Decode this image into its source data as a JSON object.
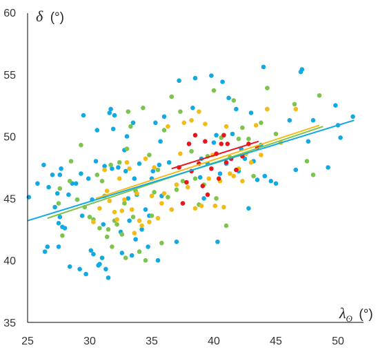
{
  "chart_data": {
    "type": "scatter",
    "title": "",
    "xlabel": {
      "symbol": "λ",
      "subscript": "ʘ",
      "unit": "(°)"
    },
    "ylabel": {
      "symbol": "δ",
      "unit": "(°)"
    },
    "xlim": [
      25,
      52
    ],
    "ylim": [
      35,
      60
    ],
    "xticks": [
      25,
      30,
      35,
      40,
      45,
      50
    ],
    "yticks": [
      35,
      40,
      45,
      50,
      55,
      60
    ],
    "grid": false,
    "legend": "none",
    "series": [
      {
        "color": "#11a9e2",
        "points": [
          [
            25.1,
            45.1
          ],
          [
            25.8,
            46.2
          ],
          [
            26.3,
            47.7
          ],
          [
            26.4,
            40.7
          ],
          [
            26.6,
            41.1
          ],
          [
            26.7,
            45.9
          ],
          [
            27.0,
            46.9
          ],
          [
            27.2,
            44.3
          ],
          [
            27.4,
            45.4
          ],
          [
            27.5,
            41.1
          ],
          [
            27.5,
            43.0
          ],
          [
            27.6,
            43.5
          ],
          [
            27.6,
            46.9
          ],
          [
            27.7,
            47.4
          ],
          [
            27.8,
            42.7
          ],
          [
            28.0,
            42.6
          ],
          [
            28.3,
            45.3
          ],
          [
            28.4,
            39.5
          ],
          [
            28.6,
            46.2
          ],
          [
            28.9,
            46.2
          ],
          [
            29.0,
            44.9
          ],
          [
            29.2,
            39.3
          ],
          [
            29.3,
            47.0
          ],
          [
            29.4,
            43.6
          ],
          [
            29.5,
            51.7
          ],
          [
            29.7,
            38.9
          ],
          [
            29.9,
            46.6
          ],
          [
            30.1,
            40.8
          ],
          [
            30.2,
            44.9
          ],
          [
            30.3,
            40.5
          ],
          [
            30.5,
            48.0
          ],
          [
            30.6,
            50.5
          ],
          [
            30.7,
            39.6
          ],
          [
            30.8,
            39.7
          ],
          [
            31.0,
            40.2
          ],
          [
            31.1,
            42.9
          ],
          [
            31.2,
            47.6
          ],
          [
            31.3,
            39.3
          ],
          [
            31.5,
            38.6
          ],
          [
            31.6,
            51.9
          ],
          [
            31.7,
            52.2
          ],
          [
            31.8,
            47.4
          ],
          [
            31.9,
            50.6
          ],
          [
            32.0,
            51.7
          ],
          [
            32.3,
            47.5
          ],
          [
            32.5,
            42.3
          ],
          [
            32.6,
            40.6
          ],
          [
            32.8,
            48.9
          ],
          [
            32.9,
            47.2
          ],
          [
            33.0,
            50.0
          ],
          [
            33.1,
            45.0
          ],
          [
            33.2,
            43.2
          ],
          [
            33.4,
            40.4
          ],
          [
            33.5,
            51.1
          ],
          [
            33.6,
            46.6
          ],
          [
            33.7,
            41.7
          ],
          [
            33.8,
            45.3
          ],
          [
            34.0,
            47.8
          ],
          [
            34.2,
            42.5
          ],
          [
            34.5,
            44.1
          ],
          [
            34.7,
            41.1
          ],
          [
            34.8,
            43.6
          ],
          [
            35.0,
            46.6
          ],
          [
            35.1,
            47.2
          ],
          [
            35.3,
            51.1
          ],
          [
            35.5,
            40.0
          ],
          [
            35.6,
            47.7
          ],
          [
            35.7,
            49.6
          ],
          [
            35.8,
            45.2
          ],
          [
            36.0,
            51.6
          ],
          [
            36.4,
            47.9
          ],
          [
            37.0,
            41.5
          ],
          [
            37.2,
            54.5
          ],
          [
            38.0,
            49.4
          ],
          [
            38.3,
            52.3
          ],
          [
            38.5,
            54.7
          ],
          [
            38.9,
            46.7
          ],
          [
            39.0,
            48.2
          ],
          [
            39.2,
            45.0
          ],
          [
            39.5,
            47.8
          ],
          [
            39.8,
            54.9
          ],
          [
            40.0,
            49.5
          ],
          [
            40.2,
            50.1
          ],
          [
            40.3,
            41.5
          ],
          [
            40.5,
            47.0
          ],
          [
            40.7,
            54.4
          ],
          [
            41.0,
            47.8
          ],
          [
            41.2,
            53.1
          ],
          [
            41.5,
            50.2
          ],
          [
            41.8,
            52.2
          ],
          [
            42.0,
            47.2
          ],
          [
            42.2,
            49.0
          ],
          [
            42.5,
            48.2
          ],
          [
            42.8,
            44.2
          ],
          [
            43.0,
            51.9
          ],
          [
            43.2,
            48.0
          ],
          [
            43.5,
            46.5
          ],
          [
            43.8,
            49.3
          ],
          [
            44.0,
            55.6
          ],
          [
            44.1,
            46.8
          ],
          [
            44.3,
            52.2
          ],
          [
            44.6,
            46.4
          ],
          [
            45.0,
            46.2
          ],
          [
            46.1,
            51.3
          ],
          [
            46.6,
            47.3
          ],
          [
            47.0,
            55.2
          ],
          [
            47.1,
            55.4
          ],
          [
            47.6,
            49.6
          ],
          [
            48.0,
            51.3
          ],
          [
            49.2,
            47.5
          ],
          [
            49.8,
            52.5
          ],
          [
            50.0,
            50.9
          ],
          [
            50.2,
            49.9
          ],
          [
            51.2,
            51.6
          ]
        ]
      },
      {
        "color": "#7dc44d",
        "points": [
          [
            27.5,
            44.6
          ],
          [
            27.6,
            45.8
          ],
          [
            27.8,
            42.0
          ],
          [
            28.4,
            46.4
          ],
          [
            28.5,
            48.0
          ],
          [
            29.0,
            44.9
          ],
          [
            29.3,
            49.3
          ],
          [
            29.6,
            44.3
          ],
          [
            30.0,
            43.5
          ],
          [
            30.3,
            43.3
          ],
          [
            30.6,
            46.9
          ],
          [
            30.8,
            42.6
          ],
          [
            31.0,
            46.4
          ],
          [
            31.2,
            45.2
          ],
          [
            31.4,
            41.9
          ],
          [
            31.5,
            42.5
          ],
          [
            31.7,
            47.7
          ],
          [
            31.8,
            41.1
          ],
          [
            32.0,
            43.2
          ],
          [
            32.2,
            42.9
          ],
          [
            32.4,
            47.9
          ],
          [
            32.6,
            42.1
          ],
          [
            32.8,
            44.6
          ],
          [
            32.9,
            40.2
          ],
          [
            33.0,
            49.0
          ],
          [
            33.1,
            52.0
          ],
          [
            33.3,
            50.8
          ],
          [
            33.5,
            43.5
          ],
          [
            33.7,
            45.6
          ],
          [
            34.0,
            40.7
          ],
          [
            34.3,
            52.3
          ],
          [
            34.5,
            40.0
          ],
          [
            34.8,
            48.5
          ],
          [
            35.0,
            43.6
          ],
          [
            35.2,
            45.5
          ],
          [
            35.5,
            47.3
          ],
          [
            35.8,
            41.4
          ],
          [
            36.0,
            50.5
          ],
          [
            36.3,
            45.1
          ],
          [
            36.6,
            53.2
          ],
          [
            37.0,
            45.7
          ],
          [
            37.3,
            52.0
          ],
          [
            37.5,
            46.4
          ],
          [
            38.2,
            48.8
          ],
          [
            38.5,
            46.6
          ],
          [
            38.8,
            44.5
          ],
          [
            39.2,
            46.1
          ],
          [
            39.5,
            48.4
          ],
          [
            40.0,
            53.7
          ],
          [
            40.2,
            45.0
          ],
          [
            40.6,
            49.9
          ],
          [
            41.0,
            42.8
          ],
          [
            41.3,
            48.3
          ],
          [
            41.6,
            52.9
          ],
          [
            42.0,
            49.8
          ],
          [
            42.3,
            50.7
          ],
          [
            42.8,
            49.8
          ],
          [
            43.2,
            46.8
          ],
          [
            43.8,
            51.1
          ],
          [
            44.3,
            53.9
          ],
          [
            45.0,
            50.2
          ],
          [
            46.5,
            52.6
          ],
          [
            47.5,
            48.0
          ],
          [
            48.0,
            46.9
          ],
          [
            48.5,
            53.3
          ]
        ]
      },
      {
        "color": "#f4bb17",
        "points": [
          [
            30.3,
            43.1
          ],
          [
            30.8,
            44.2
          ],
          [
            31.2,
            47.3
          ],
          [
            31.4,
            45.6
          ],
          [
            31.6,
            44.8
          ],
          [
            32.0,
            43.9
          ],
          [
            32.2,
            43.3
          ],
          [
            32.4,
            46.6
          ],
          [
            32.6,
            44.0
          ],
          [
            32.8,
            44.9
          ],
          [
            33.0,
            47.9
          ],
          [
            33.2,
            47.4
          ],
          [
            33.4,
            44.1
          ],
          [
            33.6,
            42.2
          ],
          [
            33.8,
            45.4
          ],
          [
            34.0,
            43.2
          ],
          [
            34.2,
            42.8
          ],
          [
            34.5,
            48.2
          ],
          [
            34.8,
            43.1
          ],
          [
            35.0,
            45.2
          ],
          [
            35.2,
            47.5
          ],
          [
            35.5,
            43.4
          ],
          [
            35.8,
            44.6
          ],
          [
            36.0,
            45.4
          ],
          [
            36.3,
            50.8
          ],
          [
            36.6,
            44.1
          ],
          [
            37.0,
            46.1
          ],
          [
            37.3,
            48.6
          ],
          [
            37.6,
            51.1
          ],
          [
            37.9,
            45.9
          ],
          [
            38.2,
            51.3
          ],
          [
            38.5,
            44.2
          ],
          [
            38.8,
            52.0
          ],
          [
            39.0,
            44.4
          ],
          [
            39.3,
            51.0
          ],
          [
            39.6,
            46.6
          ],
          [
            39.9,
            48.5
          ],
          [
            40.1,
            44.4
          ],
          [
            40.5,
            46.4
          ],
          [
            40.8,
            44.3
          ],
          [
            41.0,
            50.8
          ],
          [
            41.3,
            47.0
          ],
          [
            41.6,
            46.8
          ],
          [
            42.0,
            47.4
          ],
          [
            42.3,
            46.4
          ],
          [
            42.6,
            48.6
          ],
          [
            43.0,
            47.9
          ],
          [
            43.4,
            50.9
          ],
          [
            43.8,
            48.5
          ],
          [
            44.3,
            52.2
          ],
          [
            45.4,
            49.5
          ],
          [
            46.6,
            52.2
          ]
        ]
      },
      {
        "color": "#e8161a",
        "points": [
          [
            37.2,
            47.5
          ],
          [
            37.5,
            44.6
          ],
          [
            37.8,
            46.3
          ],
          [
            38.0,
            49.4
          ],
          [
            38.2,
            47.2
          ],
          [
            38.5,
            50.1
          ],
          [
            38.8,
            47.8
          ],
          [
            39.1,
            46.0
          ],
          [
            39.3,
            49.6
          ],
          [
            39.5,
            45.3
          ],
          [
            39.8,
            47.4
          ],
          [
            40.2,
            48.6
          ],
          [
            40.4,
            46.6
          ],
          [
            40.6,
            49.4
          ],
          [
            40.8,
            50.1
          ],
          [
            41.1,
            49.4
          ],
          [
            41.4,
            48.2
          ],
          [
            41.8,
            47.3
          ],
          [
            42.3,
            48.4
          ],
          [
            42.8,
            49.4
          ],
          [
            43.5,
            49.1
          ],
          [
            41.0,
            47.9
          ]
        ]
      }
    ],
    "trendlines": [
      {
        "color": "#7dc44d",
        "x": [
          26.6,
          48.8
        ],
        "y": [
          43.4,
          50.8
        ]
      },
      {
        "color": "#f4bb17",
        "x": [
          30.5,
          48.5
        ],
        "y": [
          45.0,
          50.9
        ]
      },
      {
        "color": "#11a9e2",
        "x": [
          25.0,
          51.3
        ],
        "y": [
          43.2,
          51.3
        ]
      },
      {
        "color": "#e8161a",
        "x": [
          36.6,
          43.6
        ],
        "y": [
          47.4,
          49.6
        ]
      }
    ]
  }
}
